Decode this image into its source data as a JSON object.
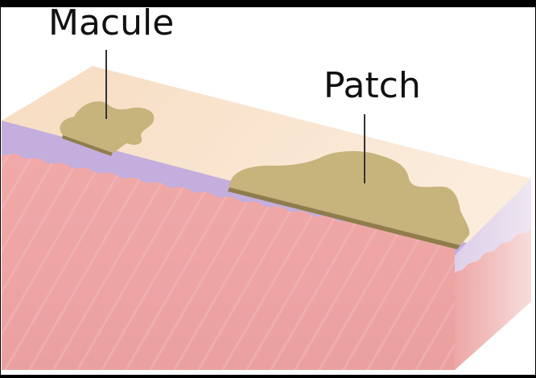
{
  "diagram": {
    "labels": {
      "macule": "Macule",
      "patch": "Patch"
    },
    "colors": {
      "epidermis_top": "#f8e4cc",
      "epidermis_side": "#c3aede",
      "dermis": "#eea7a7",
      "lesion": "#c7b37c",
      "lesion_edge": "#8f7d4c",
      "border": "#000000"
    }
  }
}
